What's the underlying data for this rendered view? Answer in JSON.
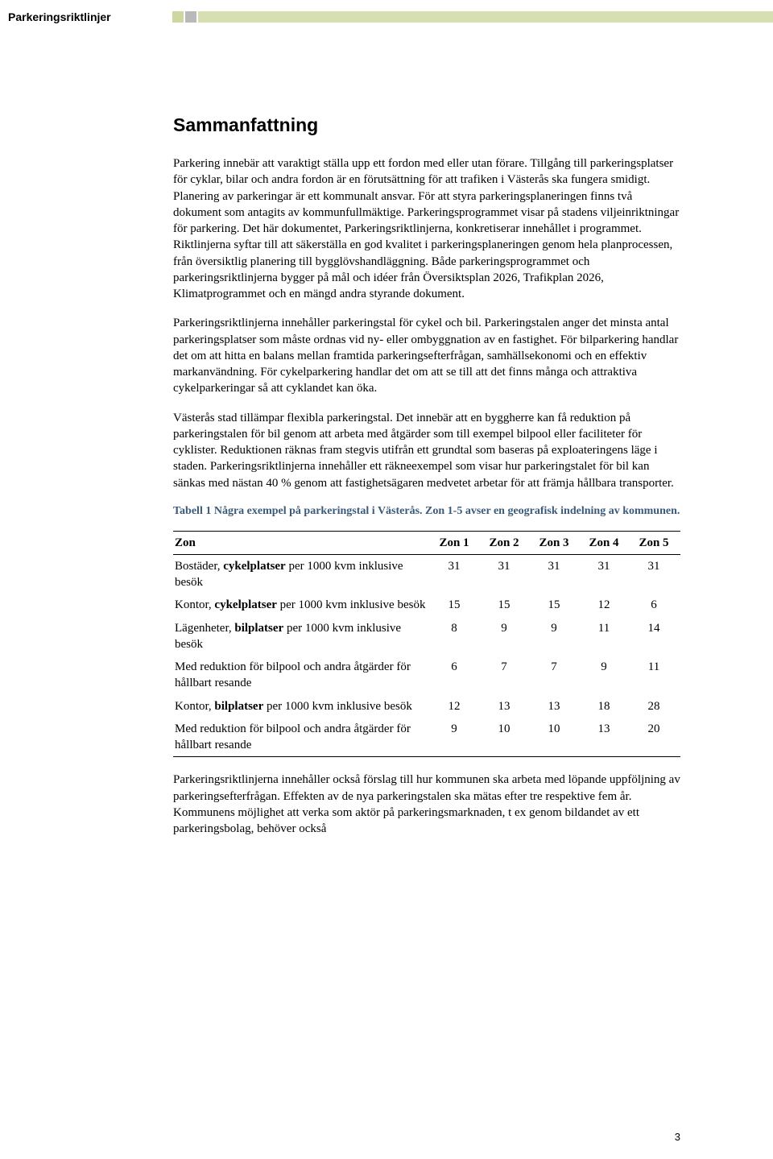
{
  "header": {
    "title": "Parkeringsriktlinjer",
    "bar_color": "#d6dfb2",
    "sq1_color": "#cdd7a2",
    "sq2_color": "#b9b9b9"
  },
  "page": {
    "heading": "Sammanfattning",
    "p1": "Parkering innebär att varaktigt ställa upp ett fordon med eller utan förare. Tillgång till parkeringsplatser för cyklar, bilar och andra fordon är en förutsättning för att trafiken i Västerås ska fungera smidigt. Planering av parkeringar är ett kommunalt ansvar. För att styra parkeringsplaneringen finns två dokument som antagits av kommunfullmäktige. Parkeringsprogrammet visar på stadens viljeinriktningar för parkering. Det här dokumentet, Parkeringsriktlinjerna, konkretiserar innehållet i programmet. Riktlinjerna syftar till att säkerställa en god kvalitet i parkeringsplaneringen genom hela planprocessen, från översiktlig planering till bygglövshandläggning. Både parkeringsprogrammet och parkeringsriktlinjerna bygger på mål och idéer från Översiktsplan 2026, Trafikplan 2026, Klimatprogrammet och en mängd andra styrande dokument.",
    "p2": "Parkeringsriktlinjerna innehåller parkeringstal för cykel och bil. Parkeringstalen anger det minsta antal parkeringsplatser som måste ordnas vid ny- eller ombyggnation av en fastighet. För bilparkering handlar det om att hitta en balans mellan framtida parkeringsefterfrågan, samhällsekonomi och en effektiv markanvändning. För cykelparkering handlar det om att se till att det finns många och attraktiva cykelparkeringar så att cyklandet kan öka.",
    "p3": "Västerås stad tillämpar flexibla parkeringstal. Det innebär att en byggherre kan få reduktion på parkeringstalen för bil genom att arbeta med åtgärder som till exempel bilpool eller faciliteter för cyklister. Reduktionen räknas fram stegvis utifrån ett grundtal som baseras på exploateringens läge i staden. Parkeringsriktlinjerna innehåller ett räkneexempel som visar hur parkeringstalet för bil kan sänkas med nästan 40 % genom att fastighetsägaren medvetet arbetar för att främja hållbara transporter.",
    "table_caption": "Tabell 1 Några exempel på parkeringstal i Västerås. Zon 1-5 avser en geografisk indelning av kommunen.",
    "p4": "Parkeringsriktlinjerna innehåller också förslag till hur kommunen ska arbeta med löpande uppföljning av parkeringsefterfrågan. Effekten av de nya parkeringstalen ska mätas efter tre respektive fem år. Kommunens möjlighet att verka som aktör på parkeringsmarknaden, t ex genom bildandet av ett parkeringsbolag, behöver också",
    "pagenum": "3"
  },
  "table": {
    "type": "table",
    "header_label": "Zon",
    "columns": [
      "Zon 1",
      "Zon 2",
      "Zon 3",
      "Zon 4",
      "Zon 5"
    ],
    "rows": [
      {
        "label_pre": "Bostäder, ",
        "label_bold": "cykelplatser",
        "label_post": " per 1000 kvm inklusive besök",
        "values": [
          31,
          31,
          31,
          31,
          31
        ]
      },
      {
        "label_pre": "Kontor, ",
        "label_bold": "cykelplatser",
        "label_post": " per 1000 kvm inklusive besök",
        "values": [
          15,
          15,
          15,
          12,
          6
        ]
      },
      {
        "label_pre": "Lägenheter, ",
        "label_bold": "bilplatser",
        "label_post": " per 1000 kvm inklusive besök",
        "values": [
          8,
          9,
          9,
          11,
          14
        ]
      },
      {
        "label_pre": "Med reduktion för bilpool och andra åtgärder för hållbart resande",
        "label_bold": "",
        "label_post": "",
        "values": [
          6,
          7,
          7,
          9,
          11
        ]
      },
      {
        "label_pre": "Kontor, ",
        "label_bold": "bilplatser",
        "label_post": " per 1000 kvm inklusive besök",
        "values": [
          12,
          13,
          13,
          18,
          28
        ]
      },
      {
        "label_pre": "Med reduktion för bilpool och andra åtgärder för hållbart resande",
        "label_bold": "",
        "label_post": "",
        "values": [
          9,
          10,
          10,
          13,
          20
        ]
      }
    ],
    "col_widths": [
      "auto",
      "62px",
      "62px",
      "62px",
      "62px",
      "62px"
    ],
    "caption_color": "#3b5a7a",
    "border_color": "#000000"
  }
}
